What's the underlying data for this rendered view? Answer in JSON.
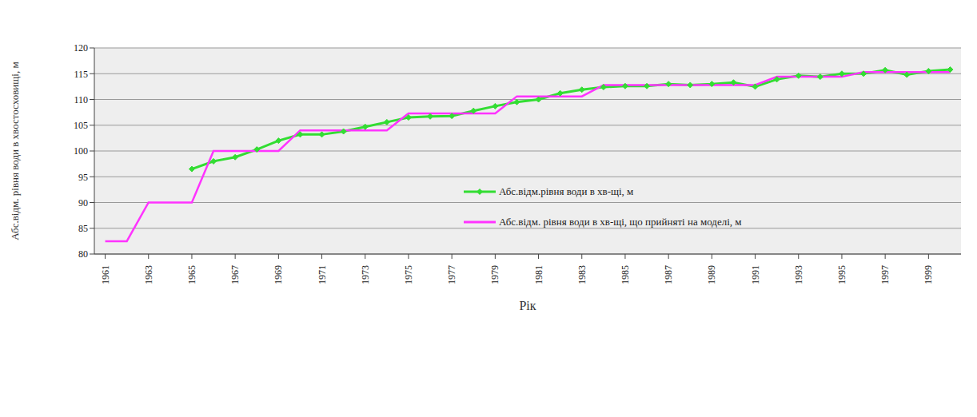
{
  "chart_data": {
    "type": "line",
    "x_label": "Рік",
    "y_label": "Абс.відм. рівня води в хвостосховищі, м",
    "x": [
      1961,
      1962,
      1963,
      1964,
      1965,
      1966,
      1967,
      1968,
      1969,
      1970,
      1971,
      1972,
      1973,
      1974,
      1975,
      1976,
      1977,
      1978,
      1979,
      1980,
      1981,
      1982,
      1983,
      1984,
      1985,
      1986,
      1987,
      1988,
      1989,
      1990,
      1991,
      1992,
      1993,
      1994,
      1995,
      1996,
      1997,
      1998,
      1999,
      2000
    ],
    "series": [
      {
        "name": "Абс.відм.рівня води в хв-щі, м",
        "color": "#33dd33",
        "marker": "diamond",
        "line_style": "solid",
        "values": [
          null,
          null,
          null,
          null,
          96.5,
          98,
          98.8,
          100.3,
          102,
          103.2,
          103.2,
          103.8,
          104.7,
          105.6,
          106.5,
          106.7,
          106.8,
          107.8,
          108.7,
          109.5,
          110,
          111.2,
          111.9,
          112.4,
          112.6,
          112.6,
          113,
          112.8,
          113,
          113.3,
          112.5,
          113.9,
          114.6,
          114.4,
          115,
          115,
          115.7,
          114.8,
          115.5,
          115.8
        ]
      },
      {
        "name": "Абс.відм. рівня води в хв-щі, що прийняті на моделі, м",
        "color": "#ff33ff",
        "marker": "none",
        "line_style": "solid",
        "values": [
          82.5,
          82.5,
          90,
          90,
          90,
          100,
          100,
          100,
          100,
          104,
          104,
          104,
          104,
          104,
          107.3,
          107.3,
          107.3,
          107.3,
          107.3,
          110.6,
          110.6,
          110.6,
          110.6,
          112.8,
          112.8,
          112.8,
          112.8,
          112.8,
          112.8,
          112.8,
          112.8,
          114.4,
          114.4,
          114.4,
          114.4,
          115.3,
          115.3,
          115.3,
          115.3,
          115.3
        ]
      }
    ],
    "xlim": [
      1960.5,
      2000.5
    ],
    "xticks": [
      1961,
      1963,
      1965,
      1967,
      1969,
      1971,
      1973,
      1975,
      1977,
      1979,
      1981,
      1983,
      1985,
      1987,
      1989,
      1991,
      1993,
      1995,
      1997,
      1999
    ],
    "ylim": [
      80,
      120
    ],
    "yticks": [
      80,
      85,
      90,
      95,
      100,
      105,
      110,
      115,
      120
    ],
    "grid": true,
    "legend": "center"
  }
}
